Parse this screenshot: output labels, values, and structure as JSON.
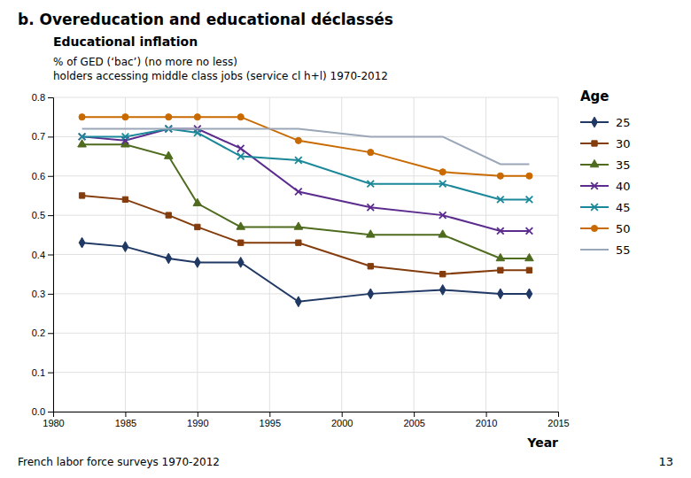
{
  "chart_data": {
    "type": "line",
    "title": "b. Overeducation and educational déclassés",
    "subtitle": "Educational inflation",
    "ylabel": [
      "% of GED (‘bac’) (no more no less)",
      "holders accessing middle class jobs (service cl h+l) 1970-2012"
    ],
    "xlabel": "Year",
    "legend_title": "Age",
    "legend": "right",
    "annotations": [
      "French labor force surveys 1970-2012",
      "13"
    ],
    "grid": true,
    "xlim": [
      1980,
      2015
    ],
    "ylim": [
      0,
      0.8
    ],
    "xticks": [
      1980,
      1985,
      1990,
      1995,
      2000,
      2005,
      2010,
      2015
    ],
    "yticks": [
      {
        "value": 0,
        "label": "0.0"
      },
      0.1,
      0.2,
      0.3,
      0.4,
      0.5,
      0.6,
      0.7,
      0.8
    ],
    "x": [
      1982,
      1985,
      1988,
      1990,
      1993,
      1997,
      2002,
      2007,
      2011,
      2013
    ],
    "series": [
      {
        "name": "25",
        "color": "#1F3864",
        "marker": "diamond",
        "values": [
          0.43,
          0.42,
          0.39,
          0.38,
          0.38,
          0.28,
          0.3,
          0.31,
          0.3,
          0.3
        ]
      },
      {
        "name": "30",
        "color": "#843C0C",
        "marker": "square",
        "values": [
          0.55,
          0.54,
          0.5,
          0.47,
          0.43,
          0.43,
          0.37,
          0.35,
          0.36,
          0.36
        ]
      },
      {
        "name": "35",
        "color": "#4E6B1E",
        "marker": "triangle",
        "values": [
          0.68,
          0.68,
          0.65,
          0.53,
          0.47,
          0.47,
          0.45,
          0.45,
          0.39,
          0.39
        ]
      },
      {
        "name": "40",
        "color": "#5B2C8D",
        "marker": "x",
        "values": [
          0.7,
          0.69,
          0.72,
          0.72,
          0.67,
          0.56,
          0.52,
          0.5,
          0.46,
          0.46
        ]
      },
      {
        "name": "45",
        "color": "#1B8899",
        "marker": "x",
        "values": [
          0.7,
          0.7,
          0.72,
          0.71,
          0.65,
          0.64,
          0.58,
          0.58,
          0.54,
          0.54
        ]
      },
      {
        "name": "50",
        "color": "#C96A00",
        "marker": "circle",
        "values": [
          0.75,
          0.75,
          0.75,
          0.75,
          0.75,
          0.69,
          0.66,
          0.61,
          0.6,
          0.6
        ]
      },
      {
        "name": "55",
        "color": "#9BA7B8",
        "marker": "none",
        "values": [
          0.72,
          0.72,
          0.72,
          0.72,
          0.72,
          0.72,
          0.7,
          0.7,
          0.63,
          0.63
        ]
      }
    ]
  }
}
